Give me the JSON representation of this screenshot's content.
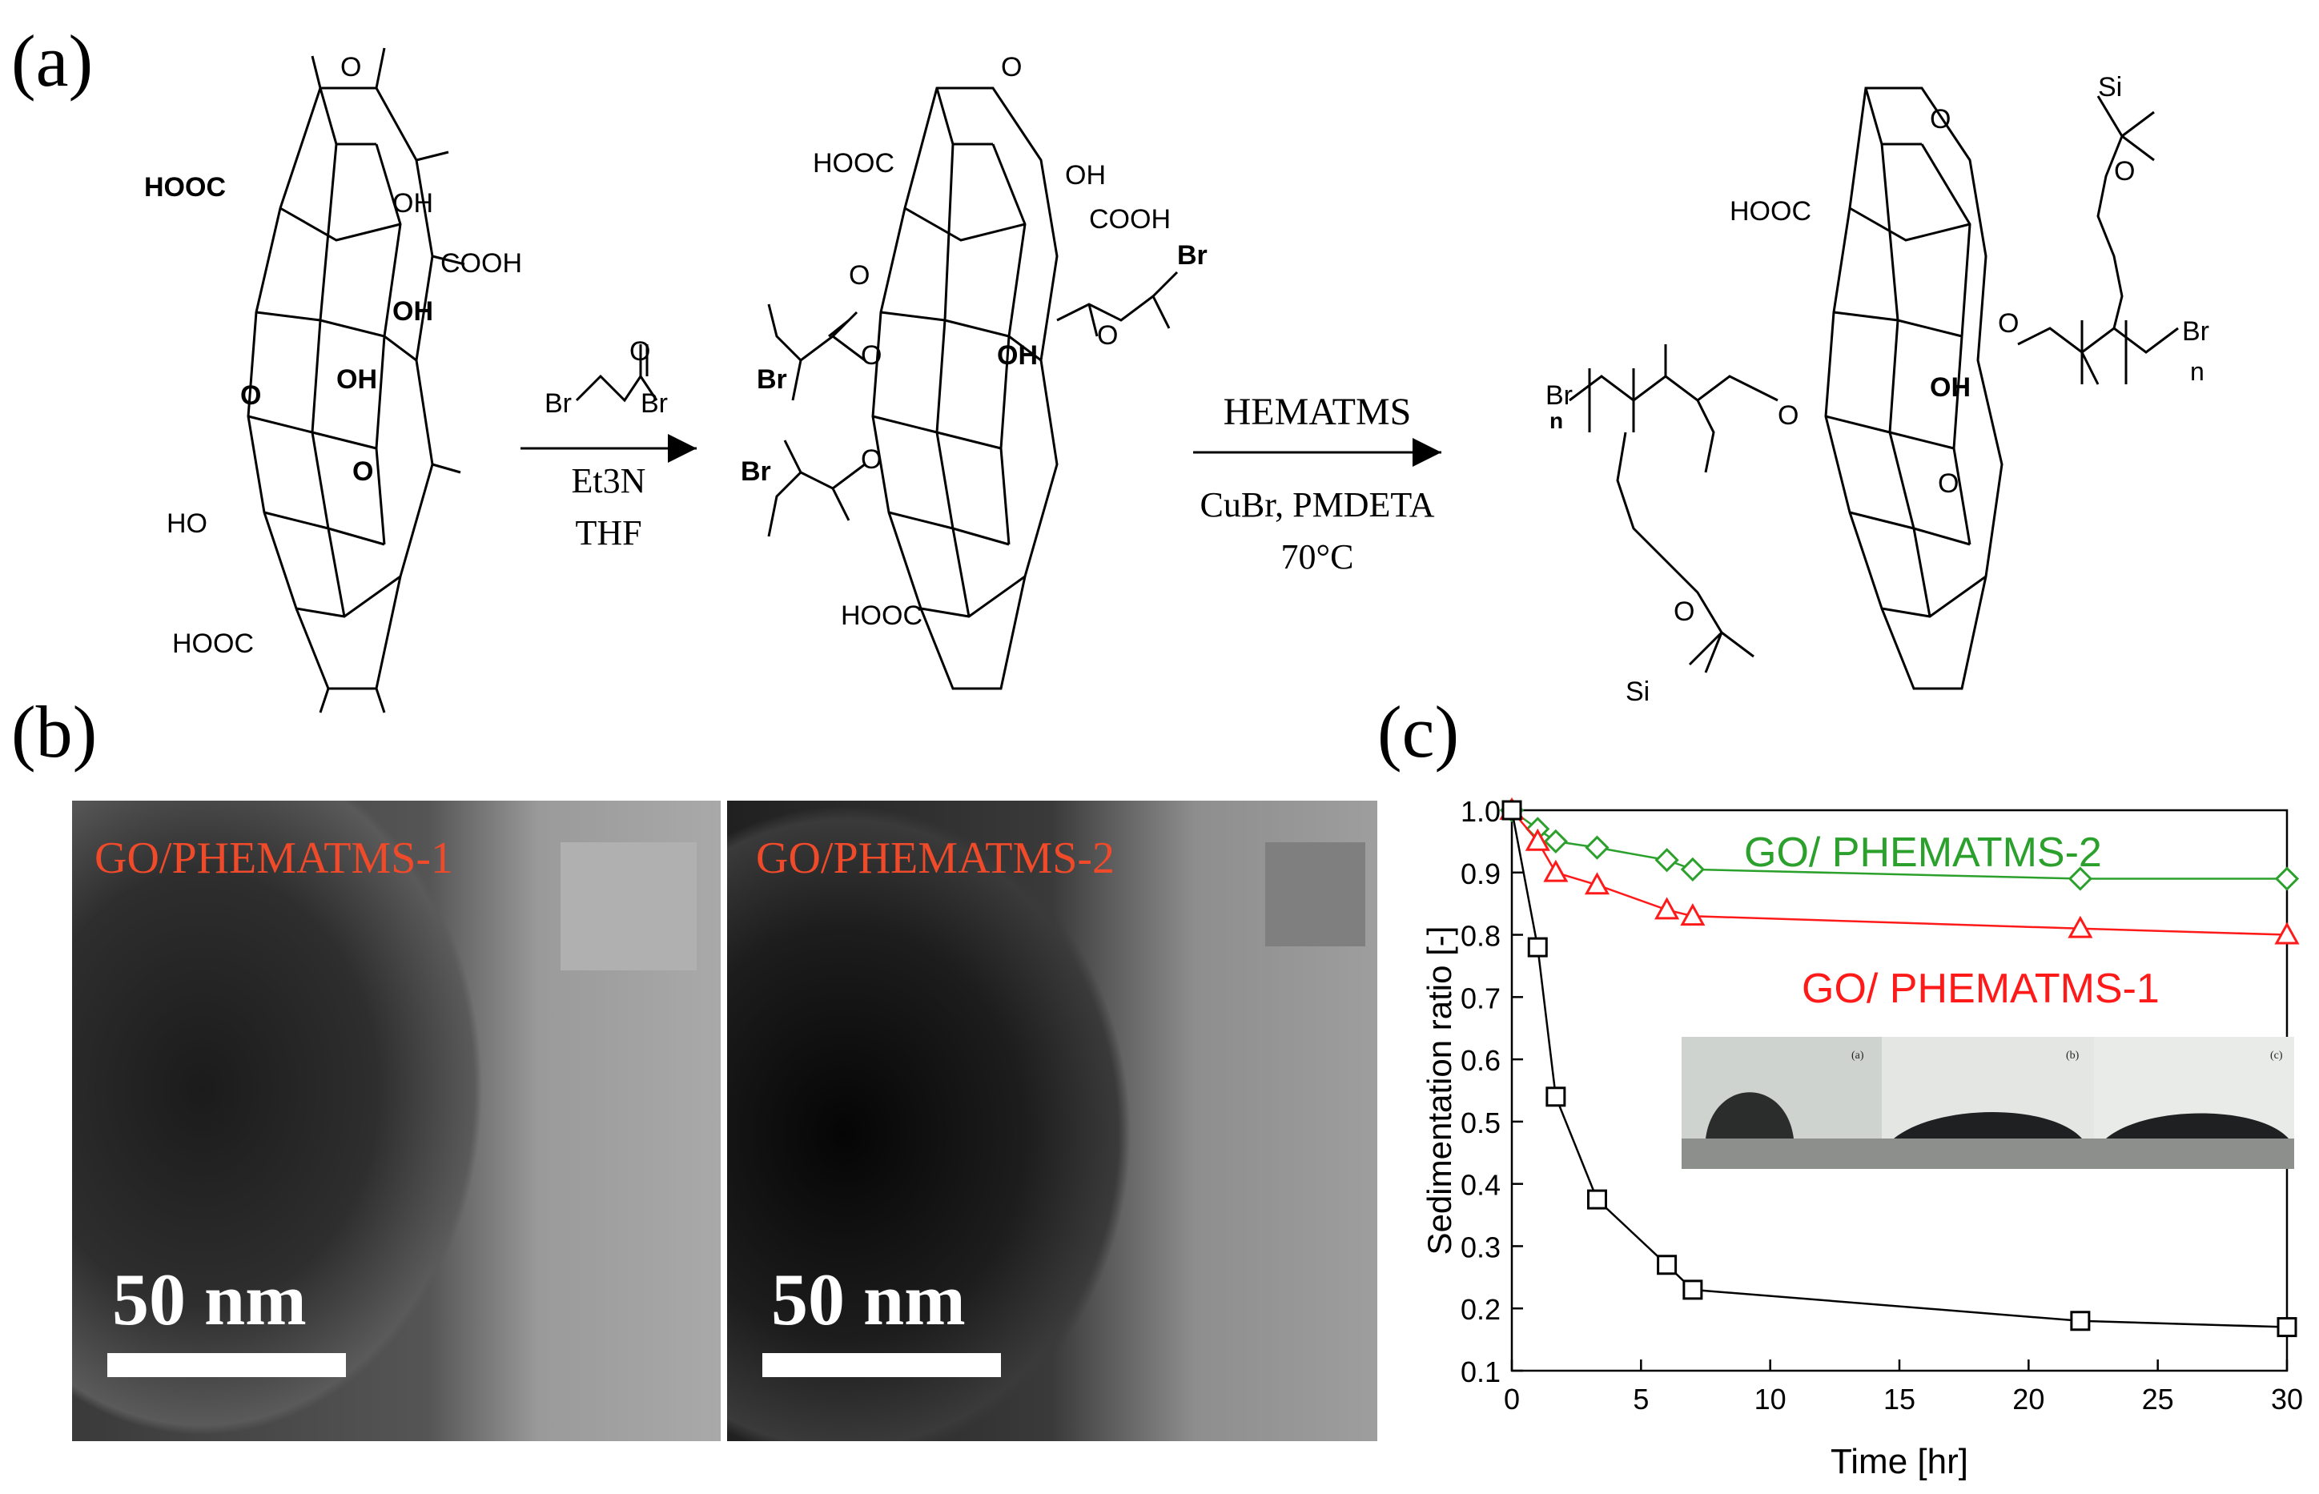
{
  "panels": {
    "a": "(a)",
    "b": "(b)",
    "c": "(c)"
  },
  "scheme": {
    "step1_reagent_labels": [
      "Br",
      "O",
      "Br"
    ],
    "step1_conditions": [
      "Et3N",
      "THF"
    ],
    "step2_reagent": "HEMATMS",
    "step2_conditions": [
      "CuBr, PMDETA",
      "70°C"
    ],
    "go_labels": [
      "HOOC",
      "OH",
      "COOH",
      "OH",
      "OH",
      "O",
      "O",
      "O",
      "HO",
      "HOOC"
    ],
    "go_br_labels": [
      "HOOC",
      "OH",
      "COOH",
      "Br",
      "Br",
      "OH",
      "Br",
      "HOOC",
      "O",
      "O",
      "O",
      "O",
      "O"
    ],
    "go_polymer_labels": [
      "HOOC",
      "O",
      "OH",
      "O",
      "Br",
      "n",
      "n",
      "Br",
      "Si",
      "O",
      "Si",
      "O",
      "O",
      "O"
    ]
  },
  "tem": [
    {
      "title": "GO/PHEMATMS-1",
      "scale": "50 nm"
    },
    {
      "title": "GO/PHEMATMS-2",
      "scale": "50 nm"
    }
  ],
  "colors": {
    "green": "#2ca02c",
    "red": "#ff1a1a",
    "black": "#000000",
    "tem_title": "#ef4a2a"
  },
  "chart_data": {
    "type": "line",
    "xlabel": "Time [hr]",
    "ylabel": "Sedimentation ratio [-]",
    "xlim": [
      0,
      30
    ],
    "ylim": [
      0.1,
      1.0
    ],
    "xticks": [
      0,
      5,
      10,
      15,
      20,
      25,
      30
    ],
    "yticks": [
      0.1,
      0.2,
      0.3,
      0.4,
      0.5,
      0.6,
      0.7,
      0.8,
      0.9,
      1.0
    ],
    "xtick_labels": [
      "0",
      "5",
      "10",
      "15",
      "20",
      "25",
      "30"
    ],
    "ytick_labels": [
      "0.1",
      "0.2",
      "0.3",
      "0.4",
      "0.5",
      "0.6",
      "0.7",
      "0.8",
      "0.9",
      "1.0"
    ],
    "series": [
      {
        "name": "GO/ PHEMATMS-2",
        "marker": "diamond",
        "color": "#2ca02c",
        "x": [
          0,
          1,
          1.7,
          3.3,
          6,
          7,
          22,
          30
        ],
        "y": [
          1.0,
          0.97,
          0.95,
          0.94,
          0.92,
          0.905,
          0.89,
          0.89
        ]
      },
      {
        "name": "GO/ PHEMATMS-1",
        "marker": "triangle",
        "color": "#ff1a1a",
        "x": [
          0,
          1,
          1.7,
          3.3,
          6,
          7,
          22,
          30
        ],
        "y": [
          1.0,
          0.95,
          0.9,
          0.88,
          0.84,
          0.83,
          0.81,
          0.8
        ]
      },
      {
        "name": "",
        "marker": "square",
        "color": "#000000",
        "x": [
          0,
          1,
          1.7,
          3.3,
          6,
          7,
          22,
          30
        ],
        "y": [
          1.0,
          0.78,
          0.54,
          0.375,
          0.27,
          0.23,
          0.18,
          0.17
        ]
      }
    ],
    "inset_labels": [
      "(a)",
      "(b)",
      "(c)"
    ]
  }
}
